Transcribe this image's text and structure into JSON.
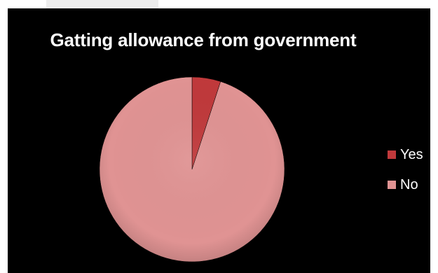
{
  "chart_data": {
    "type": "pie",
    "title": "Gatting allowance from government",
    "categories": [
      "Yes",
      "No"
    ],
    "values": [
      0.05,
      0.95
    ],
    "colors": [
      "#c0393b",
      "#e09393"
    ],
    "legend_position": "right"
  },
  "theme": {
    "background": "#000000",
    "text_color": "#ffffff"
  }
}
